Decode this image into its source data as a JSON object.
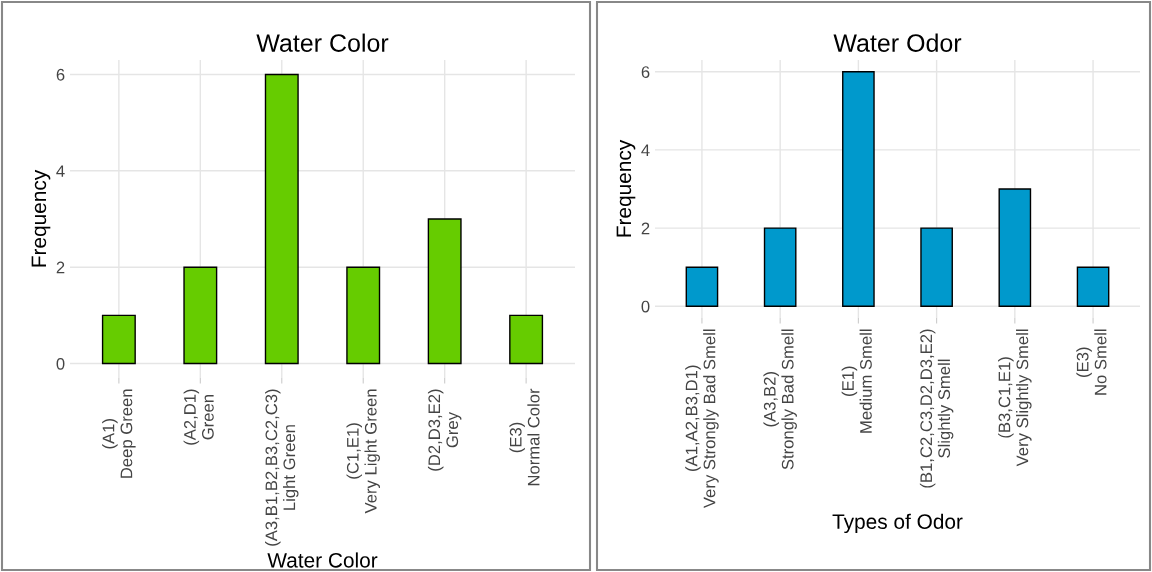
{
  "chart_data": [
    {
      "type": "bar",
      "title": "Water Color",
      "xlabel": "Water Color",
      "ylabel": "Frequency",
      "categories": [
        "(A1)\nDeep Green",
        "(A2,D1)\nGreen",
        "(A3,B1,B2,B3,C2,C3)\nLight Green",
        "(C1,E1)\nVery Light Green",
        "(D2,D3,E2)\nGrey",
        "(E3)\nNormal Color"
      ],
      "values": [
        1,
        2,
        6,
        2,
        3,
        1
      ],
      "color": "#66cc00",
      "ylim": [
        -0.3,
        6.3
      ],
      "yticks": [
        0,
        2,
        4,
        6
      ],
      "grid": true
    },
    {
      "type": "bar",
      "title": "Water Odor",
      "xlabel": "Types of Odor",
      "ylabel": "Frequency",
      "categories": [
        "(A1,A2,B3,D1)\nVery Strongly Bad Smell",
        "(A3,B2)\nStrongly Bad Smell",
        "(E1)\nMedium Smell",
        "(B1,C2,C3,D2,D3,E2)\nSlightly Smell",
        "(B3,C1,E1)\nVery Slightly Smell",
        "(E3)\nNo Smell"
      ],
      "values": [
        1,
        2,
        6,
        2,
        3,
        1
      ],
      "color": "#0099cc",
      "ylim": [
        -0.3,
        6.3
      ],
      "yticks": [
        0,
        2,
        4,
        6
      ],
      "grid": true
    }
  ]
}
